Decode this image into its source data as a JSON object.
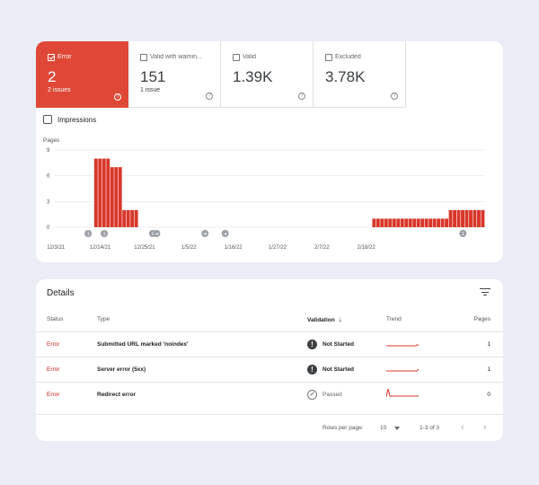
{
  "tiles": [
    {
      "label": "Error",
      "value": "2",
      "sub": "2 issues",
      "active": true
    },
    {
      "label": "Valid with warnin...",
      "value": "151",
      "sub": "1 issue",
      "active": false
    },
    {
      "label": "Valid",
      "value": "1.39K",
      "sub": "",
      "active": false
    },
    {
      "label": "Excluded",
      "value": "3.78K",
      "sub": "",
      "active": false
    }
  ],
  "impressions_label": "Impressions",
  "chart_data": {
    "type": "bar",
    "ylabel": "Pages",
    "yticks": [
      "9",
      "6",
      "3",
      "0"
    ],
    "ylim": [
      0,
      9
    ],
    "xticks": [
      "12/3/21",
      "12/14/21",
      "12/25/21",
      "1/5/22",
      "1/16/22",
      "1/27/22",
      "2/7/22",
      "2/18/22"
    ],
    "bar_color": "#d9372a",
    "values": [
      0,
      0,
      0,
      0,
      0,
      0,
      0,
      0,
      0,
      0,
      8,
      8,
      8,
      8,
      7,
      7,
      7,
      2,
      2,
      2,
      2,
      0,
      0,
      0,
      0,
      0,
      0,
      0,
      0,
      0,
      0,
      0,
      0,
      0,
      0,
      0,
      0,
      0,
      0,
      0,
      0,
      0,
      0,
      0,
      0,
      0,
      0,
      0,
      0,
      0,
      0,
      0,
      0,
      0,
      0,
      0,
      0,
      0,
      0,
      0,
      0,
      0,
      0,
      0,
      0,
      0,
      0,
      0,
      0,
      0,
      0,
      0,
      0,
      0,
      0,
      0,
      0,
      0,
      0,
      1,
      1,
      1,
      1,
      1,
      1,
      1,
      1,
      1,
      1,
      1,
      1,
      1,
      1,
      1,
      1,
      1,
      1,
      1,
      2,
      2,
      2,
      2,
      2,
      2,
      2,
      2,
      2
    ],
    "annotations": [
      {
        "index": 8,
        "symbol": "1"
      },
      {
        "index": 12,
        "symbol": "1"
      },
      {
        "index": 24,
        "symbol": "1"
      },
      {
        "index": 25,
        "symbol": "arrow"
      },
      {
        "index": 37,
        "symbol": "arrow"
      },
      {
        "index": 42,
        "symbol": "arrow"
      },
      {
        "index": 101,
        "symbol": "1"
      }
    ]
  },
  "details": {
    "title": "Details",
    "columns": {
      "status": "Status",
      "type": "Type",
      "validation": "Validation",
      "trend": "Trend",
      "pages": "Pages"
    },
    "rows": [
      {
        "status": "Error",
        "type": "Submitted URL marked 'noindex'",
        "validation": "Not Started",
        "val_icon": "exclamation-icon",
        "pages": "1"
      },
      {
        "status": "Error",
        "type": "Server error (5xx)",
        "validation": "Not Started",
        "val_icon": "exclamation-icon",
        "pages": "1"
      },
      {
        "status": "Error",
        "type": "Redirect error",
        "validation": "Passed",
        "val_icon": "check-circle-icon",
        "pages": "0"
      }
    ],
    "footer": {
      "rows_per_page_label": "Rows per page:",
      "rows_per_page_value": "10",
      "range": "1-3 of 3"
    }
  }
}
